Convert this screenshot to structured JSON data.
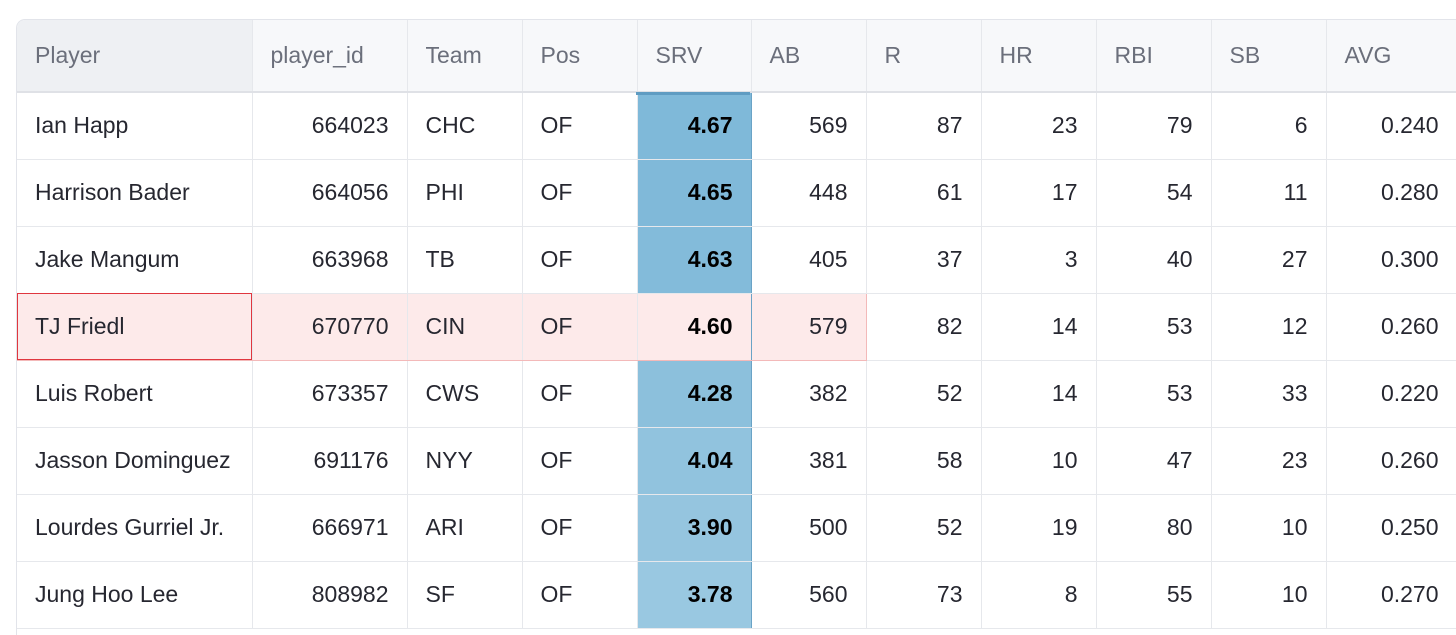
{
  "table": {
    "columns": [
      "Player",
      "player_id",
      "Team",
      "Pos",
      "SRV",
      "AB",
      "R",
      "HR",
      "RBI",
      "SB",
      "AVG"
    ],
    "rows": [
      [
        "Ian Happ",
        "664023",
        "CHC",
        "OF",
        "4.67",
        "569",
        "87",
        "23",
        "79",
        "6",
        "0.240"
      ],
      [
        "Harrison Bader",
        "664056",
        "PHI",
        "OF",
        "4.65",
        "448",
        "61",
        "17",
        "54",
        "11",
        "0.280"
      ],
      [
        "Jake Mangum",
        "663968",
        "TB",
        "OF",
        "4.63",
        "405",
        "37",
        "3",
        "40",
        "27",
        "0.300"
      ],
      [
        "TJ Friedl",
        "670770",
        "CIN",
        "OF",
        "4.60",
        "579",
        "82",
        "14",
        "53",
        "12",
        "0.260"
      ],
      [
        "Luis Robert",
        "673357",
        "CWS",
        "OF",
        "4.28",
        "382",
        "52",
        "14",
        "53",
        "33",
        "0.220"
      ],
      [
        "Jasson Dominguez",
        "691176",
        "NYY",
        "OF",
        "4.04",
        "381",
        "58",
        "10",
        "47",
        "23",
        "0.260"
      ],
      [
        "Lourdes Gurriel Jr.",
        "666971",
        "ARI",
        "OF",
        "3.90",
        "500",
        "52",
        "19",
        "80",
        "10",
        "0.250"
      ],
      [
        "Jung Hoo Lee",
        "808982",
        "SF",
        "OF",
        "3.78",
        "560",
        "73",
        "8",
        "55",
        "10",
        "0.270"
      ]
    ],
    "highlighted_row_index": 3,
    "colors": {
      "srv_column": "#7fb8d8",
      "highlight_row": "#fdeaea",
      "selected_cell_border": "#e0363f"
    }
  }
}
